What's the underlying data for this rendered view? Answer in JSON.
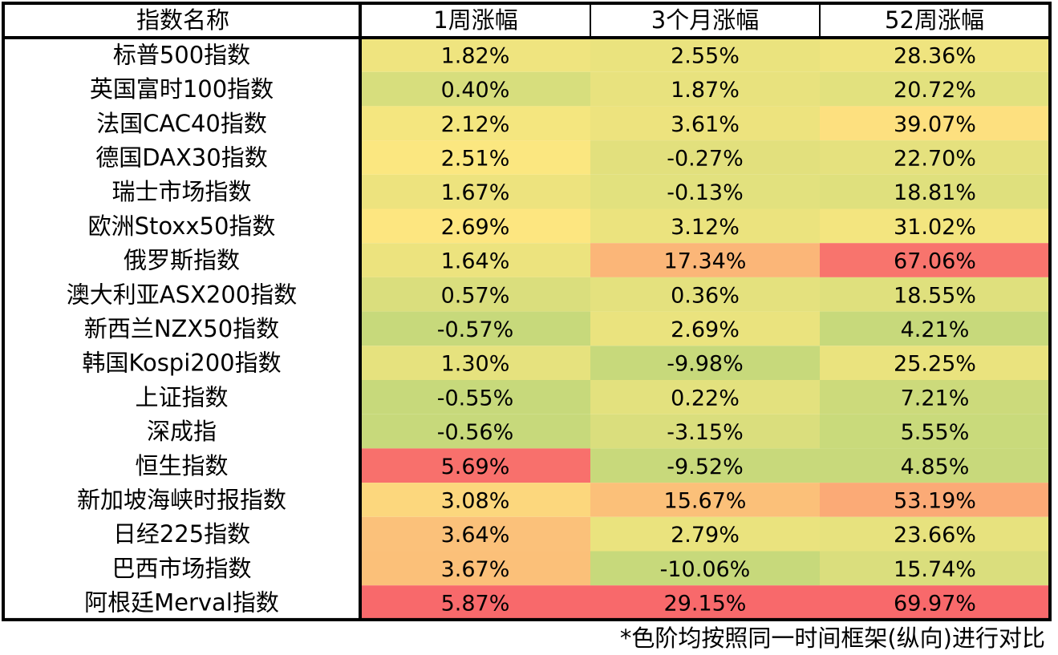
{
  "table": {
    "header": {
      "name_col": "指数名称",
      "cols": [
        "1周涨幅",
        "3个月涨幅",
        "52周涨幅"
      ]
    },
    "footnote": "*色阶均按照同一时间框架(纵向)进行对比"
  },
  "chart_data": {
    "type": "table",
    "title": "",
    "columns": [
      "1周涨幅",
      "3个月涨幅",
      "52周涨幅"
    ],
    "unit": "%",
    "color_scale": {
      "low": "#c7d97b",
      "mid": "#fde880",
      "high": "#f8696b"
    },
    "rows": [
      {
        "name": "标普500指数",
        "values": [
          1.82,
          2.55,
          28.36
        ]
      },
      {
        "name": "英国富时100指数",
        "values": [
          0.4,
          1.87,
          20.72
        ]
      },
      {
        "name": "法国CAC40指数",
        "values": [
          2.12,
          3.61,
          39.07
        ]
      },
      {
        "name": "德国DAX30指数",
        "values": [
          2.51,
          -0.27,
          22.7
        ]
      },
      {
        "name": "瑞士市场指数",
        "values": [
          1.67,
          -0.13,
          18.81
        ]
      },
      {
        "name": "欧洲Stoxx50指数",
        "values": [
          2.69,
          3.12,
          31.02
        ]
      },
      {
        "name": "俄罗斯指数",
        "values": [
          1.64,
          17.34,
          67.06
        ]
      },
      {
        "name": "澳大利亚ASX200指数",
        "values": [
          0.57,
          0.36,
          18.55
        ]
      },
      {
        "name": "新西兰NZX50指数",
        "values": [
          -0.57,
          2.69,
          4.21
        ]
      },
      {
        "name": "韩国Kospi200指数",
        "values": [
          1.3,
          -9.98,
          25.25
        ]
      },
      {
        "name": "上证指数",
        "values": [
          -0.55,
          0.22,
          7.21
        ]
      },
      {
        "name": "深成指",
        "values": [
          -0.56,
          -3.15,
          5.55
        ]
      },
      {
        "name": "恒生指数",
        "values": [
          5.69,
          -9.52,
          4.85
        ]
      },
      {
        "name": "新加坡海峡时报指数",
        "values": [
          3.08,
          15.67,
          53.19
        ]
      },
      {
        "name": "日经225指数",
        "values": [
          3.64,
          2.79,
          23.66
        ]
      },
      {
        "name": "巴西市场指数",
        "values": [
          3.67,
          -10.06,
          15.74
        ]
      },
      {
        "name": "阿根廷Merval指数",
        "values": [
          5.87,
          29.15,
          69.97
        ]
      }
    ]
  }
}
